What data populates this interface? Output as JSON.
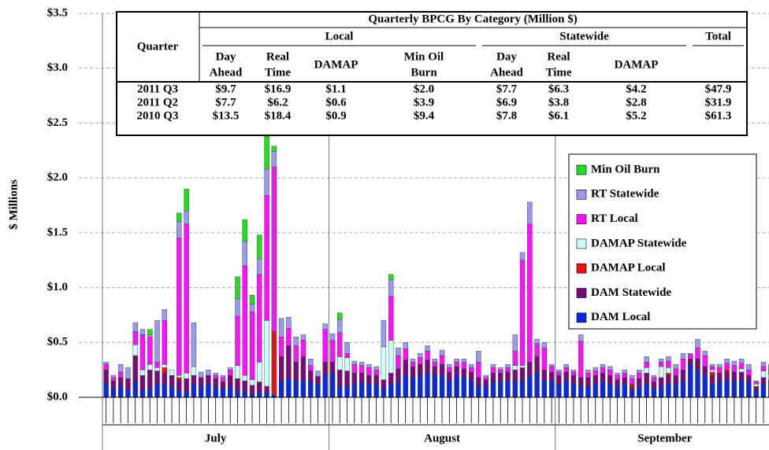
{
  "chart_data": {
    "type": "stacked_bar",
    "y_label": "$ Millions",
    "ylim": [
      0,
      3.5
    ],
    "yticks": [
      {
        "value": 0,
        "label": "$0.0"
      },
      {
        "value": 0.5,
        "label": "$0.5"
      },
      {
        "value": 1.0,
        "label": "$1.0"
      },
      {
        "value": 1.5,
        "label": "$1.5"
      },
      {
        "value": 2.0,
        "label": "$2.0"
      },
      {
        "value": 2.5,
        "label": "$2.5"
      },
      {
        "value": 3.0,
        "label": "$3.0"
      },
      {
        "value": 3.5,
        "label": "$3.5"
      }
    ],
    "grid": true,
    "legend_position": "right",
    "x_groups": [
      {
        "label": "July",
        "span": 31
      },
      {
        "label": "August",
        "span": 31
      },
      {
        "label": "September",
        "span": 30
      }
    ],
    "categories": [
      null,
      null,
      null,
      null,
      null,
      null,
      null,
      null,
      null,
      null,
      null,
      null,
      null,
      null,
      null,
      null,
      null,
      null,
      null,
      null,
      null,
      null,
      null,
      null,
      null,
      null,
      null,
      null,
      null,
      null,
      null,
      null,
      null,
      null,
      null,
      null,
      null,
      null,
      null,
      null,
      null,
      null,
      null,
      null,
      null,
      null,
      null,
      null,
      null,
      null,
      null,
      null,
      null,
      null,
      null,
      null,
      null,
      null,
      null,
      null,
      null,
      null,
      null,
      null,
      null,
      null,
      null,
      null,
      null,
      null,
      null,
      null,
      null,
      null,
      null,
      null,
      null,
      null,
      null,
      null,
      null,
      null,
      null,
      null,
      null,
      null,
      null,
      null,
      null,
      null,
      null,
      null
    ],
    "series": [
      {
        "name": "DAM Local",
        "color": "#0a28e0",
        "values": [
          0.13,
          0.08,
          0.1,
          0.07,
          0.14,
          0.06,
          0.08,
          0.12,
          0.12,
          0.1,
          0.06,
          0.05,
          0.12,
          0.1,
          0.12,
          0.1,
          0.08,
          0.1,
          0.05,
          0.05,
          0.03,
          0.04,
          0.04,
          0.02,
          0.15,
          0.17,
          0.15,
          0.15,
          0.14,
          0.12,
          0.2,
          0.22,
          0.1,
          0.1,
          0.12,
          0.14,
          0.12,
          0.12,
          0.08,
          0.12,
          0.14,
          0.2,
          0.18,
          0.2,
          0.22,
          0.2,
          0.2,
          0.15,
          0.2,
          0.18,
          0.15,
          0.1,
          0.1,
          0.14,
          0.14,
          0.15,
          0.15,
          0.15,
          0.2,
          0.22,
          0.15,
          0.15,
          0.12,
          0.15,
          0.12,
          0.1,
          0.1,
          0.12,
          0.14,
          0.12,
          0.1,
          0.12,
          0.06,
          0.1,
          0.12,
          0.08,
          0.1,
          0.12,
          0.12,
          0.15,
          0.3,
          0.25,
          0.2,
          0.12,
          0.14,
          0.15,
          0.15,
          0.15,
          0.14,
          0.06,
          0.12,
          0.1
        ]
      },
      {
        "name": "DAM Statewide",
        "color": "#7a0a7a",
        "values": [
          0.12,
          0.07,
          0.08,
          0.1,
          0.24,
          0.14,
          0.17,
          0.12,
          0.1,
          0.1,
          0.1,
          0.12,
          0.08,
          0.08,
          0.08,
          0.07,
          0.06,
          0.1,
          0.12,
          0.1,
          0.08,
          0.1,
          0.06,
          0,
          0.22,
          0.3,
          0.17,
          0.22,
          0.1,
          0.07,
          0.12,
          0.1,
          0.15,
          0.14,
          0.1,
          0.08,
          0.08,
          0.08,
          0.08,
          0.1,
          0.12,
          0.14,
          0.1,
          0.1,
          0.12,
          0.08,
          0.1,
          0.08,
          0.08,
          0.08,
          0.08,
          0.08,
          0.06,
          0.08,
          0.08,
          0.08,
          0.1,
          0.12,
          0.12,
          0.15,
          0.1,
          0.08,
          0.08,
          0.08,
          0.08,
          0.08,
          0.08,
          0.08,
          0.08,
          0.08,
          0.06,
          0.06,
          0.04,
          0.07,
          0.1,
          0.06,
          0.08,
          0.08,
          0.08,
          0.1,
          0.05,
          0.1,
          0.08,
          0.08,
          0.08,
          0.08,
          0.08,
          0.08,
          0.06,
          0.04,
          0.06,
          0.06
        ]
      },
      {
        "name": "DAMAP Local",
        "color": "#ee1111",
        "values": [
          0,
          0,
          0,
          0,
          0,
          0,
          0,
          0,
          0.05,
          0,
          0.02,
          0,
          0,
          0,
          0,
          0,
          0,
          0,
          0,
          0,
          0,
          0,
          0,
          0.58,
          0,
          0,
          0,
          0,
          0,
          0,
          0,
          0,
          0,
          0,
          0,
          0,
          0,
          0,
          0,
          0,
          0,
          0,
          0,
          0,
          0,
          0,
          0,
          0,
          0,
          0,
          0,
          0,
          0,
          0,
          0,
          0,
          0,
          0,
          0,
          0,
          0,
          0,
          0,
          0,
          0,
          0,
          0,
          0,
          0,
          0,
          0,
          0,
          0.02,
          0,
          0,
          0,
          0,
          0.02,
          0,
          0,
          0,
          0,
          0,
          0.03,
          0,
          0.02,
          0,
          0,
          0,
          0,
          0,
          0
        ]
      },
      {
        "name": "DAMAP Statewide",
        "color": "#ccffff",
        "values": [
          0,
          0,
          0,
          0,
          0.1,
          0.05,
          0.05,
          0.03,
          0.03,
          0.05,
          0.02,
          0.05,
          0.08,
          0,
          0,
          0,
          0,
          0,
          0.12,
          0.05,
          0.05,
          0.18,
          0.6,
          0,
          0,
          0,
          0,
          0,
          0,
          0,
          0,
          0,
          0.12,
          0.12,
          0,
          0,
          0,
          0,
          0.3,
          0.3,
          0,
          0,
          0,
          0,
          0,
          0,
          0,
          0,
          0,
          0,
          0,
          0,
          0,
          0,
          0,
          0,
          0.04,
          0.02,
          0,
          0,
          0,
          0,
          0,
          0,
          0,
          0,
          0,
          0,
          0,
          0,
          0,
          0,
          0,
          0,
          0.05,
          0,
          0.1,
          0.05,
          0,
          0,
          0,
          0,
          0,
          0.02,
          0,
          0,
          0,
          0.03,
          0,
          0.02,
          0.06,
          0.05
        ]
      },
      {
        "name": "RT Local",
        "color": "#ff10ff",
        "values": [
          0.05,
          0.03,
          0.05,
          0,
          0.12,
          0.32,
          0.25,
          0.05,
          0.4,
          0,
          1.25,
          1.36,
          0,
          0,
          0,
          0.03,
          0.04,
          0.05,
          0.45,
          1.0,
          0.62,
          0.8,
          1.14,
          1.5,
          0.18,
          0.16,
          0.15,
          0.15,
          0.05,
          0,
          0.3,
          0.2,
          0.22,
          0.04,
          0.08,
          0.07,
          0.07,
          0.05,
          0,
          0.4,
          0.12,
          0.1,
          0.04,
          0.06,
          0.08,
          0.04,
          0.08,
          0.04,
          0.04,
          0.06,
          0.04,
          0.14,
          0.02,
          0.05,
          0.03,
          0.04,
          0.13,
          0.96,
          1.26,
          0.12,
          0.2,
          0.05,
          0.03,
          0.04,
          0.03,
          0.33,
          0.04,
          0.04,
          0.05,
          0.05,
          0.04,
          0.04,
          0.05,
          0.05,
          0.05,
          0.04,
          0.04,
          0.06,
          0.06,
          0.1,
          0.04,
          0.1,
          0.1,
          0.03,
          0.05,
          0.06,
          0.06,
          0.05,
          0.05,
          0.02,
          0.04,
          0.05
        ]
      },
      {
        "name": "RT Statewide",
        "color": "#9999ee",
        "values": [
          0.02,
          0.02,
          0.07,
          0.1,
          0.08,
          0.05,
          0.02,
          0.38,
          0.1,
          0,
          0.15,
          0.12,
          0.4,
          0.05,
          0.05,
          0.02,
          0.02,
          0.02,
          0.16,
          0.22,
          0.07,
          0.14,
          0.24,
          0.14,
          0.17,
          0.1,
          0.08,
          0.05,
          0.06,
          0.05,
          0.05,
          0.06,
          0.12,
          0.1,
          0.03,
          0.03,
          0.03,
          0.03,
          0.24,
          0.15,
          0.07,
          0.06,
          0.03,
          0.04,
          0.05,
          0.03,
          0.05,
          0.03,
          0.03,
          0.03,
          0.03,
          0.1,
          0.02,
          0.03,
          0.02,
          0.03,
          0.15,
          0.07,
          0.2,
          0.04,
          0.05,
          0.02,
          0.02,
          0.03,
          0.02,
          0.06,
          0.03,
          0.03,
          0.03,
          0.03,
          0.02,
          0.03,
          0.03,
          0.03,
          0.05,
          0.02,
          0.03,
          0.04,
          0.04,
          0.05,
          0.01,
          0.08,
          0.04,
          0.02,
          0.03,
          0.04,
          0.04,
          0.04,
          0.05,
          0.01,
          0.04,
          0.04
        ]
      },
      {
        "name": "Min Oil Burn",
        "color": "#22dd22",
        "values": [
          0,
          0,
          0,
          0,
          0,
          0,
          0.05,
          0,
          0,
          0,
          0.08,
          0.2,
          0,
          0,
          0,
          0,
          0,
          0,
          0.2,
          0.2,
          0.08,
          0.22,
          0.3,
          0.05,
          0,
          0,
          0,
          0,
          0,
          0,
          0,
          0,
          0.06,
          0,
          0,
          0,
          0,
          0,
          0,
          0.05,
          0,
          0,
          0,
          0,
          0,
          0,
          0,
          0,
          0,
          0,
          0,
          0,
          0,
          0,
          0,
          0,
          0,
          0,
          0,
          0,
          0,
          0,
          0,
          0,
          0,
          0,
          0,
          0,
          0,
          0,
          0,
          0,
          0,
          0,
          0,
          0,
          0,
          0,
          0,
          0,
          0,
          0,
          0,
          0,
          0,
          0,
          0,
          0,
          0,
          0,
          0,
          0
        ]
      }
    ],
    "table": {
      "title": "Quarterly BPCG By Category (Million $)",
      "row_header": "Quarter",
      "groups": [
        "Local",
        "Statewide",
        "Total"
      ],
      "columns": [
        [
          "Day",
          "Ahead"
        ],
        [
          "Real",
          "Time"
        ],
        [
          "DAMAP"
        ],
        [
          "Min Oil",
          "Burn"
        ],
        [
          "Day",
          "Ahead"
        ],
        [
          "Real",
          "Time"
        ],
        [
          "DAMAP"
        ]
      ],
      "rows": [
        [
          "2011 Q3",
          "$9.7",
          "$16.9",
          "$1.1",
          "$2.0",
          "$7.7",
          "$6.3",
          "$4.2",
          "$47.9"
        ],
        [
          "2011 Q2",
          "$7.7",
          "$6.2",
          "$0.6",
          "$3.9",
          "$6.9",
          "$3.8",
          "$2.8",
          "$31.9"
        ],
        [
          "2010 Q3",
          "$13.5",
          "$18.4",
          "$0.9",
          "$9.4",
          "$7.8",
          "$6.1",
          "$5.2",
          "$61.3"
        ]
      ]
    }
  }
}
